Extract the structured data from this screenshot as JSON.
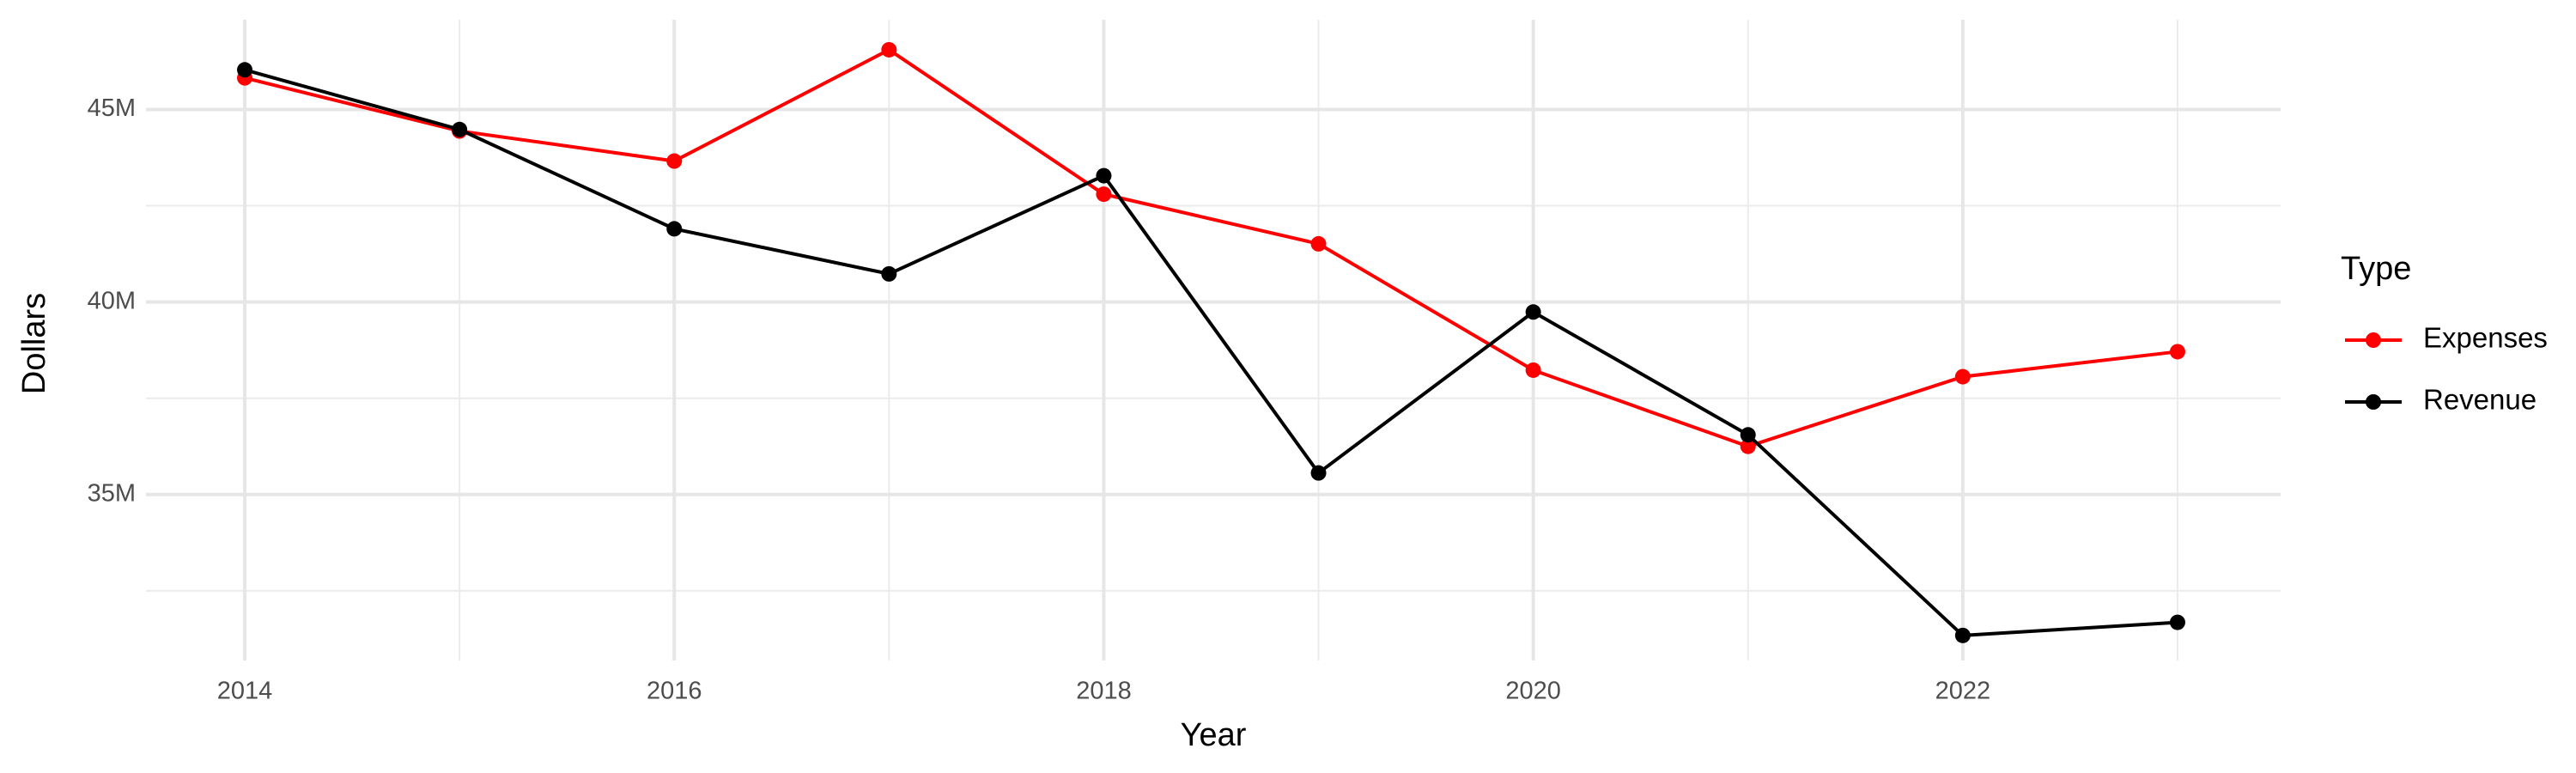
{
  "chart_data": {
    "type": "line",
    "x_label": "Year",
    "y_label": "Dollars",
    "legend_title": "Type",
    "legend": "right",
    "grid": true,
    "x": [
      2014,
      2015,
      2016,
      2017,
      2018,
      2019,
      2020,
      2021,
      2022,
      2023
    ],
    "series": [
      {
        "name": "Expenses",
        "color": "#ff0000",
        "values": [
          45820000,
          44440000,
          43660000,
          46550000,
          42800000,
          41510000,
          38230000,
          36250000,
          38060000,
          38710000
        ]
      },
      {
        "name": "Revenue",
        "color": "#000000",
        "values": [
          46030000,
          44480000,
          41900000,
          40730000,
          43280000,
          35560000,
          39740000,
          36550000,
          31340000,
          31680000
        ]
      }
    ],
    "xlim": [
      2013.54,
      2023.48
    ],
    "xticks": [
      2014,
      2016,
      2018,
      2020,
      2022
    ],
    "ylim": [
      30690000,
      47330000
    ],
    "yticks": [
      {
        "value": 35000000,
        "label": "35M"
      },
      {
        "value": 40000000,
        "label": "40M"
      },
      {
        "value": 45000000,
        "label": "45M"
      }
    ]
  }
}
